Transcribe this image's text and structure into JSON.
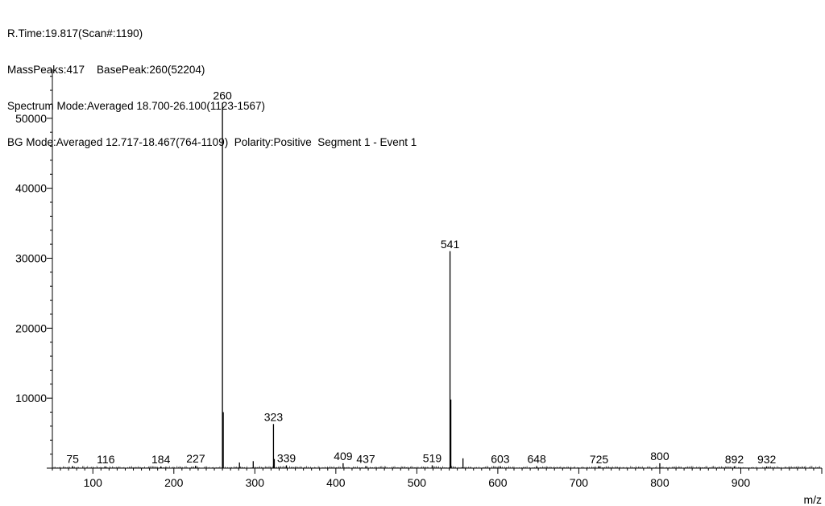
{
  "header": {
    "line1": "R.Time:19.817(Scan#:1190)",
    "line2": "MassPeaks:417    BasePeak:260(52204)",
    "line3": "Spectrum Mode:Averaged 18.700-26.100(1123-1567)",
    "line4": "BG Mode:Averaged 12.717-18.467(764-1109)  Polarity:Positive  Segment 1 - Event 1"
  },
  "chart_data": {
    "type": "bar",
    "title": "",
    "xlabel": "m/z",
    "ylabel": "",
    "xlim": [
      50,
      1000
    ],
    "ylim": [
      0,
      57000
    ],
    "x_ticks": [
      100,
      200,
      300,
      400,
      500,
      600,
      700,
      800,
      900
    ],
    "y_ticks": [
      10000,
      20000,
      30000,
      40000,
      50000
    ],
    "peaks": [
      {
        "mz": 75,
        "intensity": 300,
        "label": "75"
      },
      {
        "mz": 116,
        "intensity": 250,
        "label": "116"
      },
      {
        "mz": 184,
        "intensity": 250,
        "label": "184"
      },
      {
        "mz": 227,
        "intensity": 350,
        "label": "227"
      },
      {
        "mz": 260,
        "intensity": 52204,
        "label": "260"
      },
      {
        "mz": 261,
        "intensity": 8000,
        "label": ""
      },
      {
        "mz": 281,
        "intensity": 800,
        "label": ""
      },
      {
        "mz": 298,
        "intensity": 1000,
        "label": ""
      },
      {
        "mz": 323,
        "intensity": 6300,
        "label": "323"
      },
      {
        "mz": 324,
        "intensity": 1300,
        "label": ""
      },
      {
        "mz": 339,
        "intensity": 400,
        "label": "339"
      },
      {
        "mz": 409,
        "intensity": 700,
        "label": "409"
      },
      {
        "mz": 437,
        "intensity": 300,
        "label": "437"
      },
      {
        "mz": 519,
        "intensity": 400,
        "label": "519"
      },
      {
        "mz": 541,
        "intensity": 31000,
        "label": "541"
      },
      {
        "mz": 542,
        "intensity": 9800,
        "label": ""
      },
      {
        "mz": 557,
        "intensity": 1400,
        "label": ""
      },
      {
        "mz": 603,
        "intensity": 300,
        "label": "603"
      },
      {
        "mz": 648,
        "intensity": 300,
        "label": "648"
      },
      {
        "mz": 725,
        "intensity": 250,
        "label": "725"
      },
      {
        "mz": 800,
        "intensity": 700,
        "label": "800"
      },
      {
        "mz": 892,
        "intensity": 250,
        "label": "892"
      },
      {
        "mz": 932,
        "intensity": 250,
        "label": "932"
      }
    ]
  }
}
